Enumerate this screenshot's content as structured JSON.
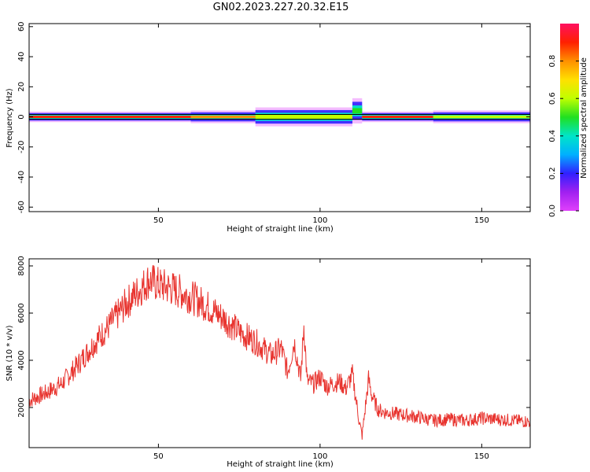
{
  "figure_title": "GN02.2023.227.20.32.E15",
  "colors": {
    "snr_line": "#e8342f",
    "axis": "#000000",
    "zero_line": "#000000",
    "colormap": [
      "#e040fb",
      "#a020f0",
      "#3020ff",
      "#00b0ff",
      "#00e5c8",
      "#20e020",
      "#c0ff00",
      "#ffe000",
      "#ff9000",
      "#ff2000",
      "#ff1060"
    ]
  },
  "chart_data": [
    {
      "type": "heatmap",
      "title": "",
      "xlabel": "Height of straight line (km)",
      "ylabel": "Frequency (Hz)",
      "xlim": [
        10,
        165
      ],
      "ylim": [
        -63,
        62
      ],
      "xticks": [
        50,
        100,
        150
      ],
      "yticks": [
        60,
        40,
        20,
        0,
        -20,
        -40,
        -60
      ],
      "colorbar": {
        "label": "Normalized spectral amplitude",
        "ticks": [
          0.0,
          0.2,
          0.4,
          0.6,
          0.8
        ],
        "range": [
          0,
          1
        ]
      },
      "band": {
        "center_hz": 0,
        "segments": [
          {
            "x_from": 10,
            "x_to": 60,
            "half_width_hz": 2.5,
            "amplitude": 0.85
          },
          {
            "x_from": 60,
            "x_to": 80,
            "half_width_hz": 3.0,
            "amplitude": 0.75
          },
          {
            "x_from": 80,
            "x_to": 110,
            "half_width_hz": 4.5,
            "amplitude": 0.6
          },
          {
            "x_from": 110,
            "x_to": 113,
            "half_width_hz": 6,
            "amplitude": 0.5,
            "center_hz": 4
          },
          {
            "x_from": 113,
            "x_to": 135,
            "half_width_hz": 2.5,
            "amplitude": 0.85
          },
          {
            "x_from": 135,
            "x_to": 165,
            "half_width_hz": 3,
            "amplitude": 0.6
          }
        ]
      }
    },
    {
      "type": "line",
      "title": "",
      "xlabel": "Height of straight line (km)",
      "ylabel": "SNR (10 * v/v)",
      "xlim": [
        10,
        165
      ],
      "ylim": [
        300,
        8300
      ],
      "xticks": [
        50,
        100,
        150
      ],
      "yticks": [
        2000,
        4000,
        6000,
        8000
      ],
      "series": [
        {
          "x": [
            10,
            15,
            20,
            25,
            30,
            35,
            40,
            45,
            47,
            50,
            55,
            60,
            65,
            70,
            75,
            80,
            85,
            88,
            90,
            92,
            94,
            95,
            96,
            98,
            100,
            102,
            104,
            106,
            108,
            110,
            112,
            113,
            115,
            116,
            118,
            120,
            125,
            130,
            135,
            140,
            145,
            150,
            155,
            160,
            165
          ],
          "values": [
            2300,
            2600,
            3000,
            3800,
            4700,
            5500,
            6400,
            7100,
            7400,
            7200,
            7000,
            6700,
            6300,
            5800,
            5200,
            4800,
            4200,
            4500,
            3500,
            4800,
            3200,
            5500,
            3100,
            3000,
            3300,
            2900,
            3000,
            3100,
            2800,
            3400,
            1500,
            800,
            3200,
            2500,
            1900,
            1800,
            1700,
            1600,
            1450,
            1500,
            1450,
            1550,
            1500,
            1450,
            1400
          ]
        }
      ]
    }
  ]
}
